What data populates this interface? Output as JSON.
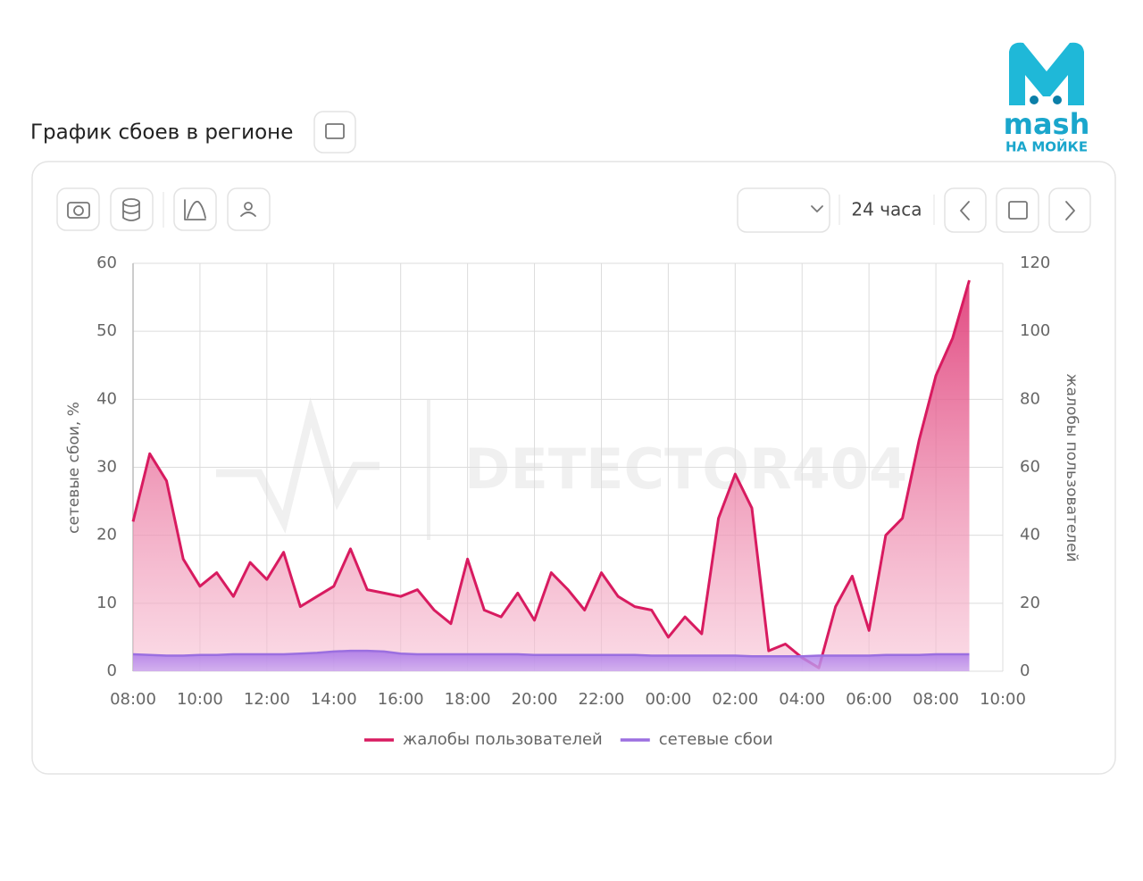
{
  "header": {
    "title": "График сбоев в регионе",
    "period": "24 часа"
  },
  "logo": {
    "brand": "mash",
    "subtitle": "НА МОЙКЕ"
  },
  "chart_data": {
    "type": "area",
    "watermark": "DETECTOR404",
    "ylabel": "сетевые сбои, %",
    "y2label": "жалобы пользователей",
    "x": [
      "08:00",
      "08:30",
      "09:00",
      "09:30",
      "10:00",
      "10:30",
      "11:00",
      "11:30",
      "12:00",
      "12:30",
      "13:00",
      "13:30",
      "14:00",
      "14:30",
      "15:00",
      "15:30",
      "16:00",
      "16:30",
      "17:00",
      "17:30",
      "18:00",
      "18:30",
      "19:00",
      "19:30",
      "20:00",
      "20:30",
      "21:00",
      "21:30",
      "22:00",
      "22:30",
      "23:00",
      "23:30",
      "00:00",
      "00:30",
      "01:00",
      "01:30",
      "02:00",
      "02:30",
      "03:00",
      "03:30",
      "04:00",
      "04:30",
      "05:00",
      "05:30",
      "06:00",
      "06:30",
      "07:00",
      "07:30",
      "08:00",
      "08:30",
      "09:00"
    ],
    "xticks": [
      "08:00",
      "10:00",
      "12:00",
      "14:00",
      "16:00",
      "18:00",
      "20:00",
      "22:00",
      "00:00",
      "02:00",
      "04:00",
      "06:00",
      "08:00",
      "10:00"
    ],
    "ylim": [
      0,
      60
    ],
    "yticks": [
      0,
      10,
      20,
      30,
      40,
      50,
      60
    ],
    "y2lim": [
      0,
      120
    ],
    "y2ticks": [
      0,
      20,
      40,
      60,
      80,
      100,
      120
    ],
    "grid": true,
    "legend": "bottom",
    "series": [
      {
        "name": "жалобы пользователей",
        "color": "#d81b60",
        "axis": "y2",
        "values": [
          44,
          64,
          56,
          33,
          25,
          29,
          22,
          32,
          27,
          35,
          19,
          22,
          25,
          36,
          24,
          23,
          22,
          24,
          18,
          14,
          33,
          18,
          16,
          23,
          15,
          29,
          24,
          18,
          29,
          22,
          19,
          18,
          10,
          16,
          11,
          45,
          58,
          48,
          6,
          8,
          4,
          1,
          19,
          28,
          12,
          40,
          45,
          68,
          87,
          98,
          115
        ]
      },
      {
        "name": "сетевые сбои",
        "color": "#9b6fe0",
        "values": [
          2.5,
          2.4,
          2.3,
          2.3,
          2.4,
          2.4,
          2.5,
          2.5,
          2.5,
          2.5,
          2.6,
          2.7,
          2.9,
          3.0,
          3.0,
          2.9,
          2.6,
          2.5,
          2.5,
          2.5,
          2.5,
          2.5,
          2.5,
          2.5,
          2.4,
          2.4,
          2.4,
          2.4,
          2.4,
          2.4,
          2.4,
          2.3,
          2.3,
          2.3,
          2.3,
          2.3,
          2.3,
          2.2,
          2.2,
          2.2,
          2.2,
          2.3,
          2.3,
          2.3,
          2.3,
          2.4,
          2.4,
          2.4,
          2.5,
          2.5,
          2.5
        ]
      }
    ]
  }
}
